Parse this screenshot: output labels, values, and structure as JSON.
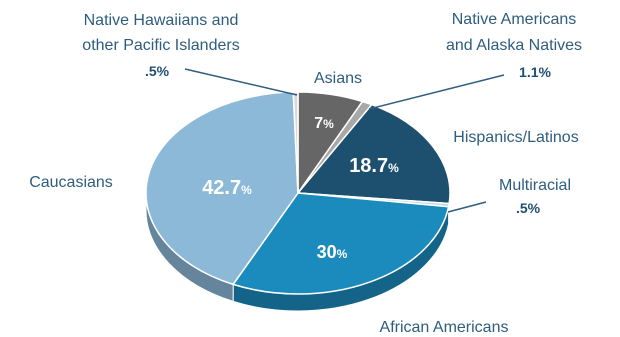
{
  "chart_data": {
    "type": "pie",
    "title": "",
    "style": "3d-pie",
    "slices": [
      {
        "label": "Asians",
        "value": 7,
        "value_label": "7",
        "unit": "%",
        "color": "#666666",
        "label_position": "inside"
      },
      {
        "label": "Native Americans and Alaska Natives",
        "value": 1.1,
        "value_label": "1.1%",
        "color": "#a8a8a8",
        "label_position": "outside"
      },
      {
        "label": "Hispanics/Latinos",
        "value": 18.7,
        "value_label": "18.7",
        "unit": "%",
        "color": "#1d4f6e",
        "label_position": "inside"
      },
      {
        "label": "Multiracial",
        "value": 0.5,
        "value_label": ".5%",
        "color": "#c4d4de",
        "label_position": "outside"
      },
      {
        "label": "African Americans",
        "value": 30,
        "value_label": "30",
        "unit": "%",
        "color": "#1b8bbd",
        "label_position": "inside"
      },
      {
        "label": "Caucasians",
        "value": 42.7,
        "value_label": "42.7",
        "unit": "%",
        "color": "#8cb9d8",
        "label_position": "inside"
      },
      {
        "label": "Native Hawaiians and other Pacific Islanders",
        "value": 0.5,
        "value_label": ".5%",
        "color": "#d9d9d9",
        "label_position": "outside"
      }
    ],
    "text": {
      "native_hawaiians_line1": "Native Hawaiians and",
      "native_hawaiians_line2": "other Pacific Islanders",
      "native_hawaiians_pct": ".5%",
      "native_americans_line1": "Native Americans",
      "native_americans_line2": "and Alaska Natives",
      "native_americans_pct": "1.1%",
      "asians": "Asians",
      "asians_pct": "7",
      "hispanics": "Hispanics/Latinos",
      "hispanics_pct": "18.7",
      "multiracial": "Multiracial",
      "multiracial_pct": ".5%",
      "caucasians": "Caucasians",
      "caucasians_pct": "42.7",
      "african_americans": "African Americans",
      "african_americans_pct": "30",
      "percent_sign": "%"
    }
  }
}
